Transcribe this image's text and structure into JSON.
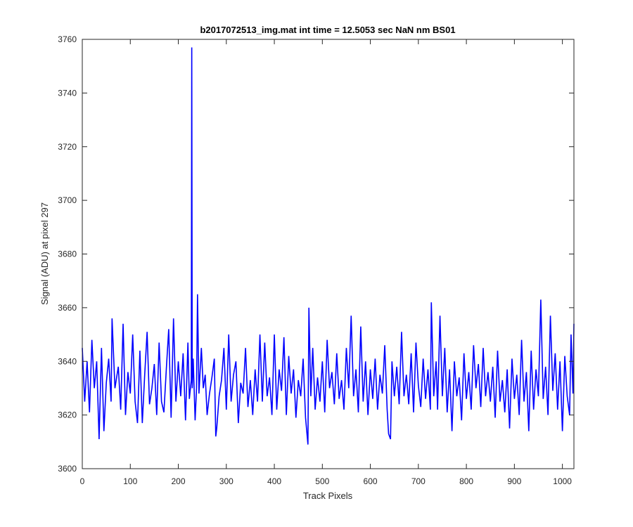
{
  "chart_data": {
    "type": "line",
    "title": "b2017072513_img.mat int time = 12.5053 sec  NaN nm BS01",
    "xlabel": "Track Pixels",
    "ylabel": "Signal (ADU) at pixel 297",
    "xlim": [
      0,
      1024
    ],
    "ylim": [
      3600,
      3760
    ],
    "xticks": [
      0,
      100,
      200,
      300,
      400,
      500,
      600,
      700,
      800,
      900,
      1000
    ],
    "yticks": [
      3600,
      3620,
      3640,
      3660,
      3680,
      3700,
      3720,
      3740,
      3760
    ],
    "grid": false,
    "line_color": "#0000ff",
    "series": [
      {
        "points": [
          [
            0,
            3645
          ],
          [
            5,
            3625
          ],
          [
            10,
            3640
          ],
          [
            15,
            3621
          ],
          [
            20,
            3648
          ],
          [
            25,
            3630
          ],
          [
            30,
            3640
          ],
          [
            35,
            3611
          ],
          [
            40,
            3645
          ],
          [
            45,
            3614
          ],
          [
            50,
            3632
          ],
          [
            55,
            3641
          ],
          [
            60,
            3625
          ],
          [
            62,
            3656
          ],
          [
            68,
            3630
          ],
          [
            75,
            3638
          ],
          [
            80,
            3622
          ],
          [
            85,
            3654
          ],
          [
            90,
            3620
          ],
          [
            95,
            3636
          ],
          [
            100,
            3628
          ],
          [
            105,
            3650
          ],
          [
            110,
            3625
          ],
          [
            115,
            3617
          ],
          [
            120,
            3644
          ],
          [
            125,
            3617
          ],
          [
            130,
            3635
          ],
          [
            135,
            3651
          ],
          [
            140,
            3624
          ],
          [
            145,
            3630
          ],
          [
            150,
            3639
          ],
          [
            155,
            3620
          ],
          [
            160,
            3647
          ],
          [
            165,
            3625
          ],
          [
            170,
            3621
          ],
          [
            175,
            3637
          ],
          [
            180,
            3652
          ],
          [
            185,
            3619
          ],
          [
            190,
            3656
          ],
          [
            195,
            3625
          ],
          [
            200,
            3640
          ],
          [
            205,
            3627
          ],
          [
            210,
            3643
          ],
          [
            215,
            3618
          ],
          [
            220,
            3647
          ],
          [
            223,
            3626
          ],
          [
            227,
            3633
          ],
          [
            228,
            3757
          ],
          [
            229,
            3630
          ],
          [
            231,
            3641
          ],
          [
            235,
            3618
          ],
          [
            238,
            3630
          ],
          [
            240,
            3665
          ],
          [
            243,
            3628
          ],
          [
            248,
            3645
          ],
          [
            252,
            3630
          ],
          [
            256,
            3635
          ],
          [
            260,
            3620
          ],
          [
            265,
            3628
          ],
          [
            270,
            3634
          ],
          [
            275,
            3641
          ],
          [
            278,
            3612
          ],
          [
            280,
            3615
          ],
          [
            285,
            3627
          ],
          [
            290,
            3633
          ],
          [
            295,
            3645
          ],
          [
            300,
            3622
          ],
          [
            305,
            3650
          ],
          [
            310,
            3625
          ],
          [
            315,
            3635
          ],
          [
            320,
            3640
          ],
          [
            325,
            3617
          ],
          [
            330,
            3632
          ],
          [
            335,
            3628
          ],
          [
            340,
            3645
          ],
          [
            345,
            3623
          ],
          [
            350,
            3633
          ],
          [
            355,
            3620
          ],
          [
            360,
            3637
          ],
          [
            365,
            3625
          ],
          [
            370,
            3650
          ],
          [
            375,
            3625
          ],
          [
            380,
            3647
          ],
          [
            385,
            3627
          ],
          [
            390,
            3634
          ],
          [
            395,
            3620
          ],
          [
            400,
            3650
          ],
          [
            405,
            3622
          ],
          [
            410,
            3637
          ],
          [
            415,
            3629
          ],
          [
            420,
            3649
          ],
          [
            425,
            3620
          ],
          [
            430,
            3642
          ],
          [
            435,
            3628
          ],
          [
            440,
            3637
          ],
          [
            445,
            3619
          ],
          [
            450,
            3633
          ],
          [
            455,
            3627
          ],
          [
            460,
            3641
          ],
          [
            465,
            3619
          ],
          [
            470,
            3609
          ],
          [
            472,
            3660
          ],
          [
            476,
            3627
          ],
          [
            480,
            3645
          ],
          [
            485,
            3622
          ],
          [
            490,
            3634
          ],
          [
            495,
            3625
          ],
          [
            500,
            3640
          ],
          [
            505,
            3621
          ],
          [
            510,
            3648
          ],
          [
            515,
            3630
          ],
          [
            520,
            3636
          ],
          [
            525,
            3624
          ],
          [
            530,
            3643
          ],
          [
            535,
            3626
          ],
          [
            540,
            3633
          ],
          [
            545,
            3622
          ],
          [
            550,
            3645
          ],
          [
            555,
            3630
          ],
          [
            560,
            3657
          ],
          [
            565,
            3627
          ],
          [
            570,
            3637
          ],
          [
            575,
            3621
          ],
          [
            580,
            3653
          ],
          [
            585,
            3625
          ],
          [
            590,
            3640
          ],
          [
            595,
            3620
          ],
          [
            600,
            3637
          ],
          [
            605,
            3626
          ],
          [
            610,
            3641
          ],
          [
            615,
            3622
          ],
          [
            620,
            3635
          ],
          [
            625,
            3628
          ],
          [
            630,
            3646
          ],
          [
            635,
            3622
          ],
          [
            638,
            3613
          ],
          [
            642,
            3611
          ],
          [
            645,
            3640
          ],
          [
            650,
            3627
          ],
          [
            655,
            3638
          ],
          [
            660,
            3624
          ],
          [
            665,
            3651
          ],
          [
            670,
            3627
          ],
          [
            675,
            3635
          ],
          [
            680,
            3624
          ],
          [
            685,
            3643
          ],
          [
            690,
            3621
          ],
          [
            695,
            3647
          ],
          [
            700,
            3631
          ],
          [
            705,
            3623
          ],
          [
            710,
            3641
          ],
          [
            715,
            3626
          ],
          [
            720,
            3637
          ],
          [
            725,
            3622
          ],
          [
            727,
            3662
          ],
          [
            732,
            3627
          ],
          [
            737,
            3640
          ],
          [
            740,
            3622
          ],
          [
            745,
            3657
          ],
          [
            750,
            3627
          ],
          [
            755,
            3645
          ],
          [
            760,
            3621
          ],
          [
            765,
            3637
          ],
          [
            770,
            3614
          ],
          [
            775,
            3640
          ],
          [
            780,
            3627
          ],
          [
            785,
            3634
          ],
          [
            790,
            3618
          ],
          [
            795,
            3643
          ],
          [
            800,
            3626
          ],
          [
            805,
            3636
          ],
          [
            810,
            3622
          ],
          [
            815,
            3646
          ],
          [
            820,
            3630
          ],
          [
            825,
            3639
          ],
          [
            830,
            3623
          ],
          [
            835,
            3645
          ],
          [
            840,
            3627
          ],
          [
            845,
            3636
          ],
          [
            850,
            3625
          ],
          [
            855,
            3638
          ],
          [
            860,
            3619
          ],
          [
            865,
            3644
          ],
          [
            870,
            3625
          ],
          [
            875,
            3633
          ],
          [
            880,
            3621
          ],
          [
            885,
            3637
          ],
          [
            890,
            3615
          ],
          [
            895,
            3641
          ],
          [
            900,
            3626
          ],
          [
            905,
            3635
          ],
          [
            910,
            3620
          ],
          [
            915,
            3648
          ],
          [
            920,
            3625
          ],
          [
            925,
            3636
          ],
          [
            930,
            3614
          ],
          [
            935,
            3644
          ],
          [
            940,
            3622
          ],
          [
            945,
            3637
          ],
          [
            950,
            3627
          ],
          [
            955,
            3663
          ],
          [
            960,
            3626
          ],
          [
            965,
            3638
          ],
          [
            970,
            3620
          ],
          [
            975,
            3657
          ],
          [
            980,
            3629
          ],
          [
            985,
            3643
          ],
          [
            990,
            3622
          ],
          [
            995,
            3640
          ],
          [
            1000,
            3614
          ],
          [
            1005,
            3642
          ],
          [
            1010,
            3627
          ],
          [
            1015,
            3620
          ],
          [
            1018,
            3650
          ],
          [
            1022,
            3628
          ],
          [
            1024,
            3654
          ]
        ]
      }
    ]
  }
}
